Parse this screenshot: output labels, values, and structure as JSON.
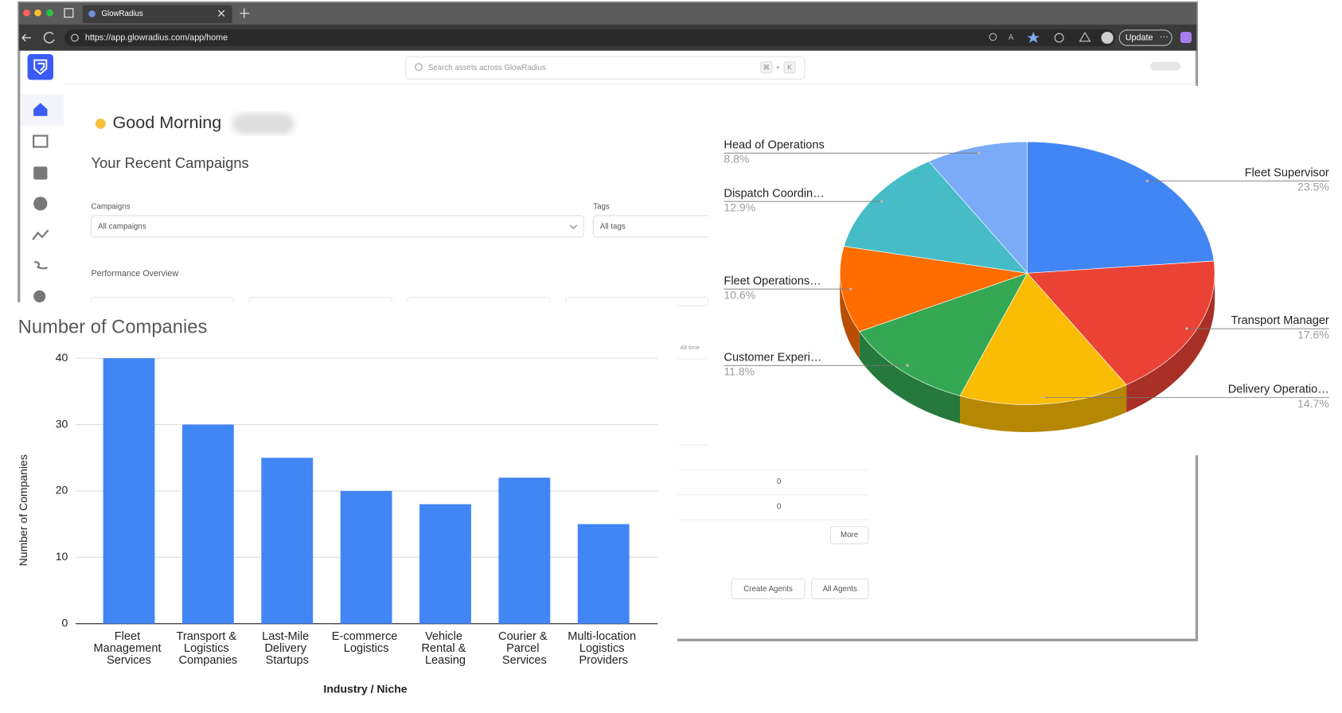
{
  "browser": {
    "tab_title": "GlowRadius",
    "url": "https://app.glowradius.com/app/home",
    "update_button": "Update"
  },
  "app": {
    "search_placeholder": "Search assets across GlowRadius",
    "shortcut": [
      "⌘",
      "+",
      "K"
    ],
    "greeting": "Good Morning",
    "section_title": "Your Recent Campaigns",
    "filters": [
      {
        "label": "Campaigns",
        "value": "All campaigns"
      },
      {
        "label": "Tags",
        "value": "All tags"
      }
    ],
    "performance_title": "Performance Overview",
    "time_filter": "All time",
    "table_values": [
      "0",
      "0"
    ],
    "buttons": [
      "More",
      "Create Agents",
      "All Agents"
    ]
  },
  "chart_data": [
    {
      "type": "bar",
      "title": "Number of Companies",
      "x_label": "Industry / Niche",
      "y_label": "Number of Companies",
      "categories": [
        "Fleet Management Services",
        "Transport & Logistics Companies",
        "Last-Mile Delivery Startups",
        "E-commerce Logistics",
        "Vehicle Rental & Leasing",
        "Courier & Parcel Services",
        "Multi-location Logistics Providers"
      ],
      "values": [
        40,
        30,
        25,
        20,
        18,
        22,
        15
      ],
      "color": "#4285f4",
      "ylim": [
        0,
        40
      ],
      "yticks": [
        0,
        10,
        20,
        30,
        40
      ],
      "grid": true
    },
    {
      "type": "pie",
      "3d": true,
      "categories": [
        "Fleet Supervisor",
        "Transport Manager",
        "Delivery Operatio…",
        "Customer Experi…",
        "Fleet Operations…",
        "Dispatch Coordin…",
        "Head of Operations"
      ],
      "values": [
        23.5,
        17.6,
        14.7,
        11.8,
        10.6,
        12.9,
        8.8
      ],
      "value_labels": [
        "23.5%",
        "17.6%",
        "14.7%",
        "11.8%",
        "10.6%",
        "12.9%",
        "8.8%"
      ],
      "colors": [
        "#4285f4",
        "#ea4335",
        "#fbbc04",
        "#34a853",
        "#ff6d01",
        "#46bdc6",
        "#7baaf7"
      ]
    }
  ]
}
